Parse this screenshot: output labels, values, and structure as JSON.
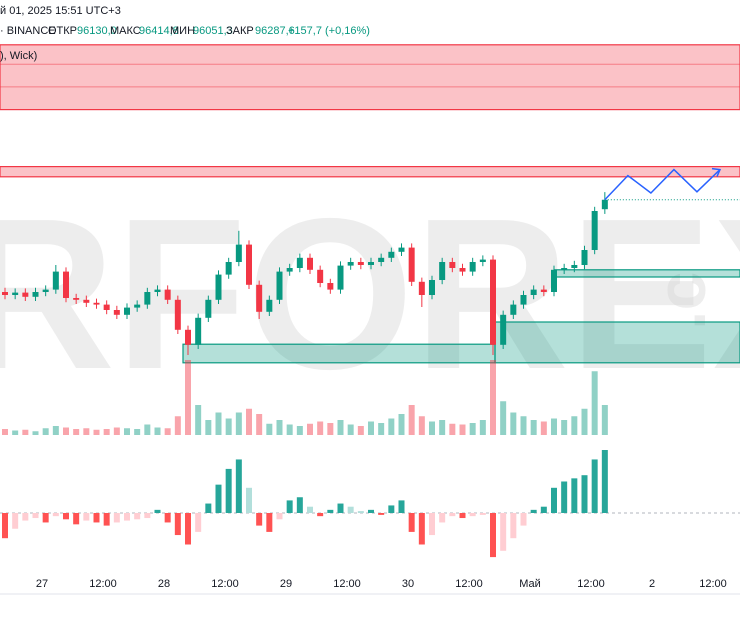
{
  "header": {
    "datetime": "й 01, 2025 15:51 UTC+3",
    "exchange": "· BINANCE",
    "open_label": "ОТКР",
    "open": "96130,0",
    "high_label": "МАКС",
    "high": "96414,8",
    "low_label": "МИН",
    "low": "96051,3",
    "close_label": "ЗАКР",
    "close": "96287,6",
    "change": "+157,7 (+0,16%)",
    "indicator": "), Wick)"
  },
  "watermark": {
    "main": "RFOREX",
    "tail": ".c"
  },
  "chart_data": {
    "type": "candlestick",
    "up_color": "#089981",
    "down_color": "#f23645",
    "x_labels": [
      "27",
      "12:00",
      "28",
      "12:00",
      "29",
      "12:00",
      "30",
      "12:00",
      "Май",
      "12:00",
      "2",
      "12:00"
    ],
    "ylim": [
      92450,
      98950
    ],
    "open": [
      94750,
      94700,
      94740,
      94670,
      94750,
      94790,
      95090,
      94650,
      94620,
      94570,
      94540,
      94450,
      94370,
      94490,
      94540,
      94750,
      94790,
      94620,
      94120,
      93870,
      94320,
      94620,
      95040,
      95250,
      95540,
      94870,
      94420,
      94620,
      95090,
      95150,
      95320,
      95120,
      94900,
      94790,
      95190,
      95250,
      95200,
      95250,
      95320,
      95420,
      95490,
      94920,
      94700,
      94950,
      95250,
      95150,
      95090,
      95250,
      95290,
      93870,
      94370,
      94540,
      94700,
      94790,
      94750,
      95120,
      95150,
      95200,
      95450,
      96130.0
    ],
    "high": [
      94820,
      94810,
      94810,
      94820,
      94860,
      95200,
      95160,
      94720,
      94690,
      94640,
      94610,
      94520,
      94560,
      94610,
      94820,
      94860,
      94860,
      94690,
      94190,
      94390,
      94690,
      95110,
      95320,
      95770,
      95610,
      94940,
      94690,
      95160,
      95220,
      95390,
      95390,
      95190,
      94970,
      95260,
      95320,
      95320,
      95320,
      95390,
      95490,
      95560,
      95560,
      94990,
      95020,
      95320,
      95320,
      95220,
      95320,
      95360,
      95360,
      94440,
      94610,
      94770,
      94860,
      94860,
      95190,
      95220,
      95270,
      95520,
      96170,
      96414.8
    ],
    "low": [
      94630,
      94630,
      94600,
      94600,
      94680,
      94720,
      94580,
      94550,
      94500,
      94470,
      94380,
      94300,
      94300,
      94420,
      94470,
      94680,
      94550,
      94050,
      93700,
      93800,
      94250,
      94550,
      94970,
      95180,
      94800,
      94300,
      94350,
      94550,
      95020,
      95080,
      95050,
      94830,
      94720,
      94720,
      95120,
      95130,
      95130,
      95180,
      95250,
      95350,
      94850,
      94500,
      94630,
      94880,
      95080,
      95020,
      95020,
      95180,
      93700,
      93800,
      94300,
      94470,
      94630,
      94680,
      94680,
      95050,
      95080,
      95130,
      95380,
      96051.3
    ],
    "close": [
      94700,
      94740,
      94670,
      94750,
      94790,
      95090,
      94650,
      94620,
      94570,
      94540,
      94450,
      94370,
      94490,
      94540,
      94750,
      94790,
      94620,
      94120,
      93870,
      94320,
      94620,
      95040,
      95250,
      95540,
      94870,
      94420,
      94620,
      95090,
      95150,
      95320,
      95120,
      94900,
      94790,
      95190,
      95250,
      95200,
      95250,
      95320,
      95420,
      95490,
      94920,
      94700,
      94950,
      95250,
      95150,
      95090,
      95250,
      95290,
      93870,
      94370,
      94540,
      94700,
      94790,
      94750,
      95120,
      95150,
      95200,
      95450,
      96100,
      96287.6
    ],
    "zones": [
      {
        "top": 98870,
        "bottom": 97790,
        "color": "#f23645"
      },
      {
        "top": 96840,
        "bottom": 96670,
        "color": "#f23645"
      },
      {
        "top": 95120,
        "bottom": 95000,
        "color": "#089981"
      },
      {
        "top": 94250,
        "bottom": 93570,
        "color": "#089981"
      },
      {
        "top": 93880,
        "bottom": 93570,
        "color": "#089981"
      }
    ],
    "projection": {
      "color": "#2962ff",
      "values": [
        96287.6,
        96690,
        96400,
        96790,
        96420,
        96790
      ]
    },
    "volume": {
      "ylim": [
        0,
        100
      ],
      "values": [
        8,
        6,
        7,
        5,
        9,
        12,
        10,
        8,
        9,
        7,
        8,
        10,
        9,
        8,
        14,
        10,
        9,
        25,
        100,
        40,
        20,
        30,
        22,
        30,
        35,
        28,
        15,
        20,
        14,
        12,
        15,
        18,
        16,
        20,
        14,
        12,
        18,
        16,
        22,
        28,
        40,
        25,
        18,
        20,
        15,
        14,
        16,
        20,
        100,
        45,
        30,
        25,
        20,
        18,
        22,
        20,
        25,
        35,
        85,
        40
      ]
    },
    "histogram": {
      "ylim": [
        -100,
        100
      ],
      "values": [
        -40,
        -25,
        -12,
        -8,
        -15,
        -5,
        -10,
        -18,
        -12,
        -15,
        -20,
        -15,
        -12,
        -10,
        -8,
        5,
        -15,
        -35,
        -50,
        -30,
        15,
        45,
        70,
        85,
        40,
        -20,
        -30,
        -10,
        20,
        25,
        10,
        -5,
        5,
        15,
        10,
        3,
        5,
        -3,
        12,
        20,
        -30,
        -50,
        -35,
        -15,
        -5,
        -8,
        -5,
        -3,
        -70,
        -60,
        -40,
        -20,
        5,
        10,
        40,
        50,
        55,
        60,
        85,
        100
      ]
    }
  }
}
